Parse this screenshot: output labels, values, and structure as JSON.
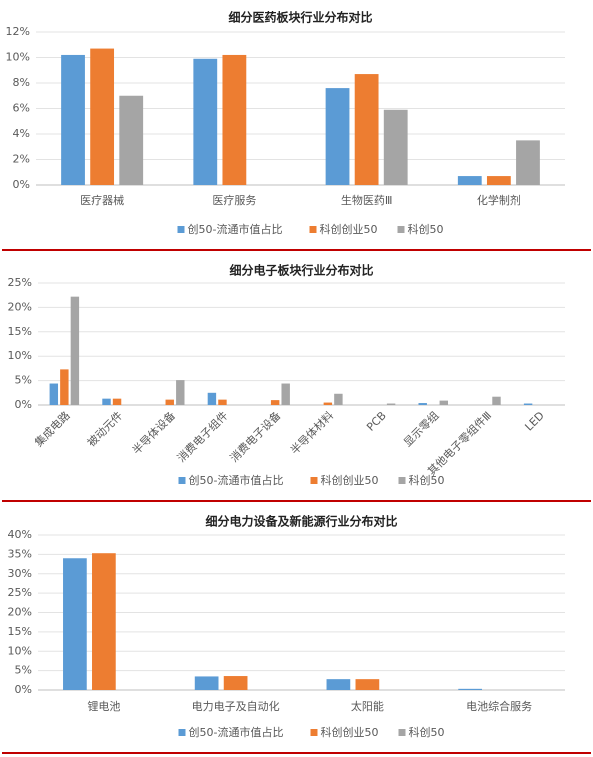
{
  "chart_data": [
    {
      "type": "bar",
      "title": "细分医药板块行业分布对比",
      "categories": [
        "医疗器械",
        "医疗服务",
        "生物医药Ⅲ",
        "化学制剂"
      ],
      "series": [
        {
          "name": "创50-流通市值占比",
          "color": "#5b9bd5",
          "values": [
            10.2,
            9.9,
            7.6,
            0.7
          ]
        },
        {
          "name": "科创创业50",
          "color": "#ed7d31",
          "values": [
            10.7,
            10.2,
            8.7,
            0.7
          ]
        },
        {
          "name": "科创50",
          "color": "#a5a5a5",
          "values": [
            7.0,
            null,
            5.9,
            3.5
          ]
        }
      ],
      "ylim": [
        0,
        12
      ],
      "yticks": [
        {
          "value": 0,
          "label": "0%"
        },
        {
          "value": 2,
          "label": "2%"
        },
        {
          "value": 4,
          "label": "4%"
        },
        {
          "value": 6,
          "label": "6%"
        },
        {
          "value": 8,
          "label": "8%"
        },
        {
          "value": 10,
          "label": "10%"
        },
        {
          "value": 12,
          "label": "12%"
        }
      ],
      "grid": true,
      "legend": "bottom"
    },
    {
      "type": "bar",
      "title": "细分电子板块行业分布对比",
      "categories": [
        "集成电路",
        "被动元件",
        "半导体设备",
        "消费电子组件",
        "消费电子设备",
        "半导体材料",
        "PCB",
        "显示零组",
        "其他电子零组件Ⅲ",
        "LED"
      ],
      "series": [
        {
          "name": "创50-流通市值占比",
          "color": "#5b9bd5",
          "values": [
            4.4,
            1.3,
            null,
            2.5,
            null,
            null,
            null,
            0.4,
            null,
            0.3
          ]
        },
        {
          "name": "科创创业50",
          "color": "#ed7d31",
          "values": [
            7.3,
            1.3,
            1.1,
            1.1,
            1.0,
            0.5,
            null,
            null,
            null,
            null
          ]
        },
        {
          "name": "科创50",
          "color": "#a5a5a5",
          "values": [
            22.2,
            null,
            5.1,
            null,
            4.4,
            2.3,
            0.3,
            0.9,
            1.7,
            null
          ]
        }
      ],
      "ylim": [
        0,
        25
      ],
      "yticks": [
        {
          "value": 0,
          "label": "0%"
        },
        {
          "value": 5,
          "label": "5%"
        },
        {
          "value": 10,
          "label": "10%"
        },
        {
          "value": 15,
          "label": "15%"
        },
        {
          "value": 20,
          "label": "20%"
        },
        {
          "value": 25,
          "label": "25%"
        }
      ],
      "grid": true,
      "legend": "bottom"
    },
    {
      "type": "bar",
      "title": "细分电力设备及新能源行业分布对比",
      "categories": [
        "锂电池",
        "电力电子及自动化",
        "太阳能",
        "电池综合服务"
      ],
      "series": [
        {
          "name": "创50-流通市值占比",
          "color": "#5b9bd5",
          "values": [
            34.0,
            3.5,
            2.8,
            0.3
          ]
        },
        {
          "name": "科创创业50",
          "color": "#ed7d31",
          "values": [
            35.3,
            3.6,
            2.8,
            null
          ]
        },
        {
          "name": "科创50",
          "color": "#a5a5a5",
          "values": [
            null,
            null,
            null,
            null
          ]
        }
      ],
      "ylim": [
        0,
        40
      ],
      "yticks": [
        {
          "value": 0,
          "label": "0%"
        },
        {
          "value": 5,
          "label": "5%"
        },
        {
          "value": 10,
          "label": "10%"
        },
        {
          "value": 15,
          "label": "15%"
        },
        {
          "value": 20,
          "label": "20%"
        },
        {
          "value": 25,
          "label": "25%"
        },
        {
          "value": 30,
          "label": "30%"
        },
        {
          "value": 35,
          "label": "35%"
        },
        {
          "value": 40,
          "label": "40%"
        }
      ],
      "grid": true,
      "legend": "bottom"
    }
  ]
}
